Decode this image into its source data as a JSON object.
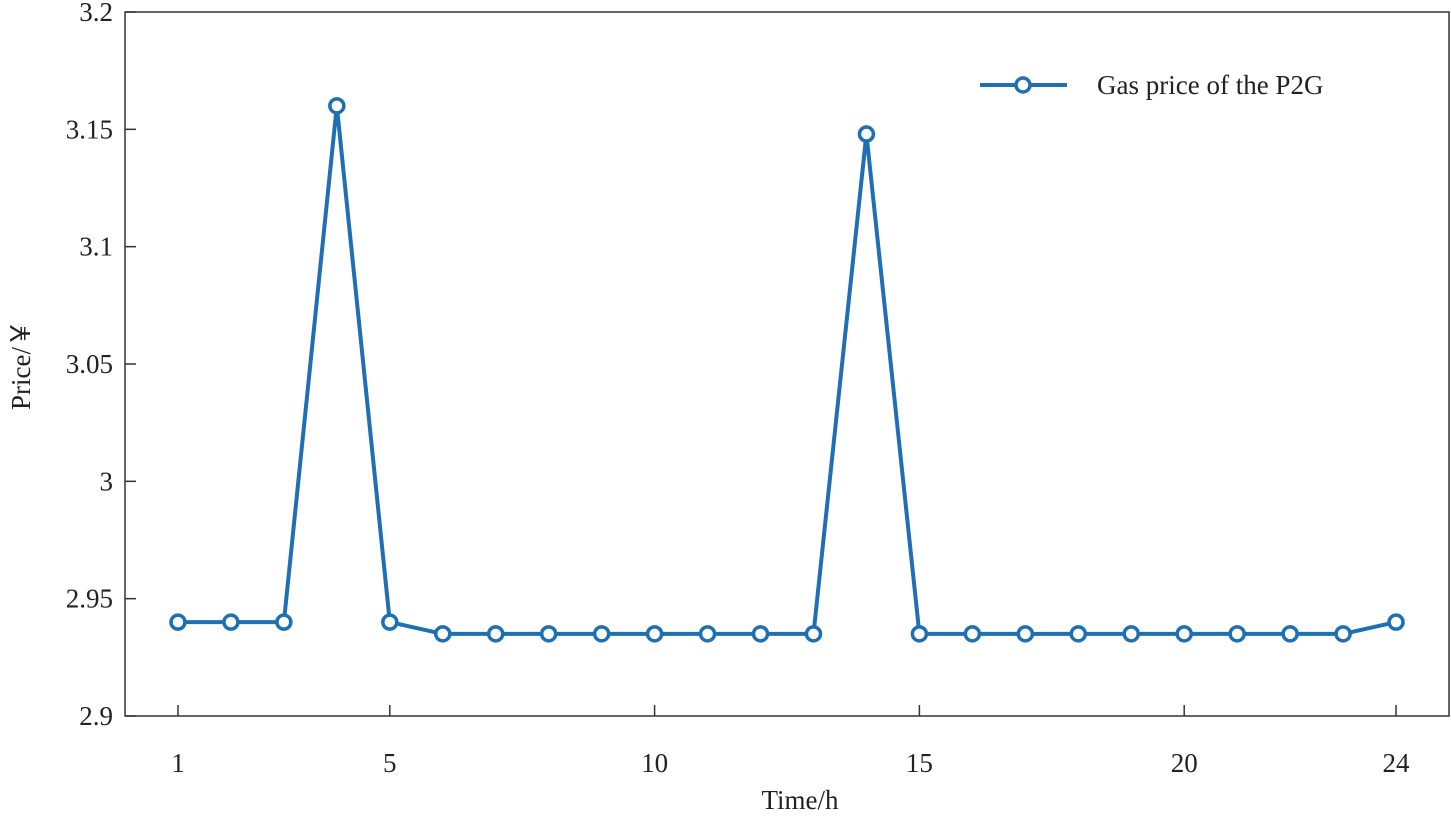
{
  "chart_data": {
    "type": "line",
    "title": "",
    "xlabel": "Time/h",
    "ylabel": "Price/￥",
    "xlim": [
      0,
      25
    ],
    "ylim": [
      2.9,
      3.2
    ],
    "x_ticks": [
      1,
      5,
      10,
      15,
      20,
      24
    ],
    "y_ticks": [
      2.9,
      2.95,
      3,
      3.05,
      3.1,
      3.15,
      3.2
    ],
    "x_tick_labels": [
      "1",
      "5",
      "10",
      "15",
      "20",
      "24"
    ],
    "y_tick_labels": [
      "2.9",
      "2.95",
      "3",
      "3.05",
      "3.1",
      "3.15",
      "3.2"
    ],
    "grid": false,
    "legend_position": "top-right",
    "colors": {
      "series": "#1f6fb4",
      "axis": "#333333"
    },
    "series": [
      {
        "name": "Gas price of the P2G",
        "marker": "circle",
        "x": [
          1,
          2,
          3,
          4,
          5,
          6,
          7,
          8,
          9,
          10,
          11,
          12,
          13,
          14,
          15,
          16,
          17,
          18,
          19,
          20,
          21,
          22,
          23,
          24
        ],
        "values": [
          2.94,
          2.94,
          2.94,
          3.16,
          2.94,
          2.935,
          2.935,
          2.935,
          2.935,
          2.935,
          2.935,
          2.935,
          2.935,
          3.148,
          2.935,
          2.935,
          2.935,
          2.935,
          2.935,
          2.935,
          2.935,
          2.935,
          2.935,
          2.94
        ]
      }
    ]
  }
}
